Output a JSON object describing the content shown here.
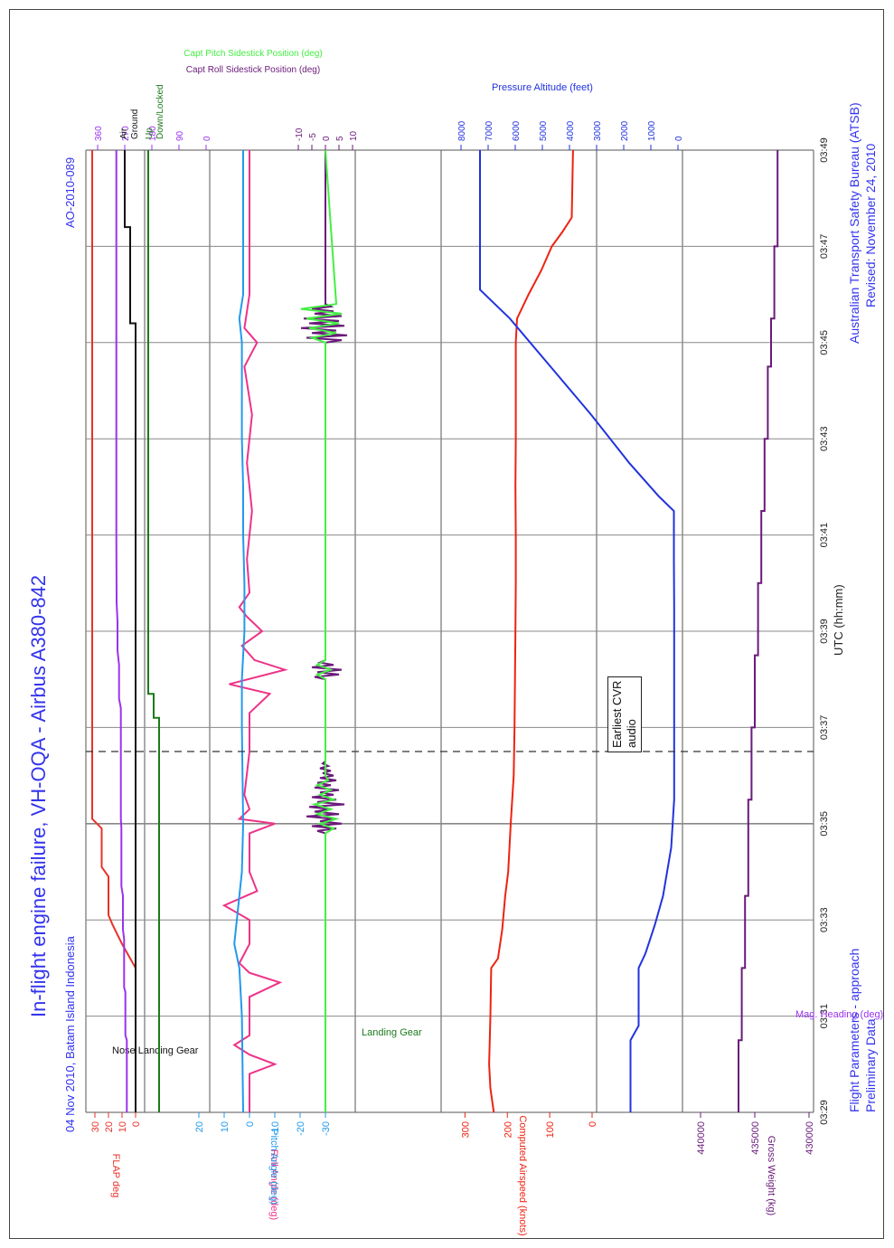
{
  "header": {
    "title": "In-flight engine failure, VH-OQA - Airbus A380-842",
    "subtitle": "04 Nov 2010, Batam Island Indonesia",
    "report_id": "AO-2010-089"
  },
  "footer": {
    "left_line1": "Flight Parameters - approach",
    "left_line2": "Preliminary Data",
    "right_line1": "Australian Transport Safety Bureau (ATSB)",
    "right_line2": "Revised: November 24, 2010",
    "xlabel": "UTC (hh:mm)"
  },
  "colors": {
    "title_blue": "#3333ee",
    "flap": "#e8322a",
    "nose_gear": "#111111",
    "landing_gear": "#1b7a1b",
    "heading": "#9933ee",
    "roll": "#ee3388",
    "pitch": "#2299ee",
    "roll_stick": "#6a1a7a",
    "pitch_stick": "#44ee44",
    "airspeed": "#ee2211",
    "altitude": "#2233dd",
    "weight": "#6a1a7a"
  },
  "chart_data": {
    "type": "line",
    "title": "In-flight engine failure, VH-OQA - Airbus A380-842",
    "xlabel": "UTC (hh:mm)",
    "x_ticks": [
      "03:29",
      "03:31",
      "03:33",
      "03:35",
      "03:37",
      "03:39",
      "03:41",
      "03:43",
      "03:45",
      "03:47",
      "03:49"
    ],
    "x_range_min": [
      0,
      20
    ],
    "grid": true,
    "annotations": {
      "cvr_box_line1": "Earliest CVR",
      "cvr_box_line2": "audio",
      "cvr_time_min": 6.0,
      "dashed_time_min": 7.5
    },
    "axes": {
      "flap": {
        "label": "FLAP deg",
        "ticks": [
          "30",
          "20",
          "10",
          "0"
        ]
      },
      "gear": {
        "labels": [
          "Air",
          "Ground",
          "Up",
          "Down/Locked"
        ]
      },
      "heading": {
        "label": "Mag. Heading (deg)",
        "ticks": [
          "360",
          "270",
          "180",
          "90",
          "0"
        ]
      },
      "roll_pitch": {
        "label_roll": "Roll Angle (deg)",
        "label_pitch": "Pitch Angle (deg)",
        "ticks": [
          "20",
          "10",
          "0",
          "-10",
          "-20",
          "-30"
        ]
      },
      "sidestick": {
        "label_roll": "Capt Roll Sidestick Position (deg)",
        "label_pitch": "Capt Pitch Sidestick Position (deg)",
        "ticks": [
          "-10",
          "-5",
          "0",
          "5",
          "10"
        ]
      },
      "airspeed": {
        "label": "Computed Airspeed (knots)",
        "ticks": [
          "300",
          "200",
          "100",
          "0"
        ]
      },
      "altitude": {
        "label": "Pressure Altitude (feet)",
        "ticks": [
          "8000",
          "7000",
          "6000",
          "5000",
          "4000",
          "3000",
          "2000",
          "1000",
          "0"
        ]
      },
      "weight": {
        "label": "Gross Weight (kg)",
        "ticks": [
          "440000",
          "435000",
          "430000"
        ]
      }
    },
    "series": [
      {
        "name": "FLAP deg",
        "x": [
          0,
          3.0,
          3.5,
          3.9,
          4.1,
          4.9,
          5.1,
          5.9,
          6.1,
          20
        ],
        "y": [
          0,
          0,
          10,
          17,
          20,
          20,
          25,
          25,
          32,
          32
        ]
      },
      {
        "name": "Nose Landing Gear",
        "x": [
          0,
          16.4,
          16.4,
          18.4,
          18.4,
          20
        ],
        "y": [
          0,
          0,
          0.5,
          0.5,
          1,
          1
        ]
      },
      {
        "name": "Landing Gear",
        "x": [
          0,
          8.2,
          8.2,
          8.7,
          8.7,
          20
        ],
        "y": [
          0,
          0,
          0.5,
          0.5,
          1,
          1
        ]
      },
      {
        "name": "Mag. Heading (deg)",
        "x": [
          0,
          1.5,
          1.6,
          2.5,
          2.6,
          3.6,
          3.8,
          4.5,
          4.7,
          5.9,
          6.1,
          8.4,
          8.6,
          9.3,
          9.6,
          10.2,
          10.6,
          12,
          20
        ],
        "y": [
          263,
          263,
          268,
          268,
          272,
          272,
          276,
          276,
          281,
          281,
          283,
          283,
          289,
          289,
          294,
          294,
          297,
          298,
          298
        ]
      },
      {
        "name": "Roll Angle (deg)",
        "x": [
          0,
          0.8,
          1.0,
          1.2,
          1.4,
          1.6,
          2.4,
          2.7,
          2.9,
          3.1,
          3.5,
          4.0,
          4.3,
          4.6,
          5.0,
          5.8,
          6.0,
          6.1,
          6.3,
          6.6,
          7.5,
          8.3,
          8.7,
          8.9,
          9.2,
          9.4,
          9.7,
          10.0,
          10.3,
          10.5,
          10.8,
          11.5,
          12.5,
          13.5,
          14.5,
          15.5,
          16.0,
          16.3,
          17,
          20
        ],
        "y": [
          0,
          0,
          -10,
          0,
          6,
          0,
          0,
          -12,
          0,
          4,
          0,
          0,
          10,
          -3,
          0,
          0,
          -10,
          4,
          0,
          2,
          0,
          0,
          -8,
          8,
          -14,
          -2,
          3,
          -5,
          1,
          4,
          0,
          1,
          -1,
          1,
          -1,
          2,
          -3,
          2,
          0,
          0
        ]
      },
      {
        "name": "Pitch Angle (deg)",
        "x": [
          0,
          2,
          3,
          3.5,
          4,
          5,
          6,
          8,
          9,
          10,
          11,
          12,
          13,
          14,
          15,
          16,
          16.5,
          17,
          20
        ],
        "y": [
          2.5,
          3,
          4,
          6,
          5,
          3,
          2.5,
          3,
          3,
          2,
          2,
          2.5,
          2.5,
          3,
          3,
          3,
          4,
          2.5,
          2.5
        ]
      },
      {
        "name": "Capt Roll Sidestick Position (deg)",
        "x": [
          0,
          5.8,
          5.85,
          5.9,
          5.95,
          6.0,
          6.05,
          6.1,
          6.15,
          6.2,
          6.25,
          6.3,
          6.35,
          6.4,
          6.45,
          6.5,
          6.55,
          6.6,
          6.65,
          6.7,
          6.75,
          6.8,
          6.85,
          6.9,
          6.95,
          7.0,
          7.05,
          7.1,
          7.15,
          7.2,
          7.25,
          7.3,
          9.0,
          9.05,
          9.1,
          9.15,
          9.2,
          9.25,
          9.3,
          9.35,
          9.4,
          16.0,
          16.05,
          16.1,
          16.15,
          16.2,
          16.25,
          16.3,
          16.35,
          16.4,
          16.45,
          16.5,
          16.55,
          16.6,
          16.65,
          16.7,
          16.75,
          16.8,
          20
        ],
        "y": [
          0,
          0,
          3,
          -4,
          5,
          -6,
          2,
          -3,
          7,
          -5,
          4,
          -2,
          6,
          -7,
          3,
          -4,
          5,
          -3,
          2,
          -5,
          4,
          -2,
          3,
          -4,
          2,
          -3,
          1,
          -2,
          2,
          -1,
          1,
          0,
          0,
          4,
          -5,
          3,
          -6,
          5,
          -3,
          2,
          0,
          0,
          -6,
          7,
          -8,
          5,
          -4,
          9,
          -7,
          6,
          -5,
          8,
          -6,
          4,
          -3,
          5,
          -2,
          0,
          0
        ]
      },
      {
        "name": "Capt Pitch Sidestick Position (deg)",
        "x": [
          0,
          5.8,
          5.9,
          6.0,
          6.1,
          6.2,
          6.3,
          6.4,
          6.5,
          6.6,
          6.7,
          6.8,
          6.9,
          7.0,
          9.0,
          9.1,
          9.2,
          9.3,
          9.4,
          16.0,
          16.1,
          16.2,
          16.3,
          16.4,
          16.5,
          16.6,
          16.7,
          16.8,
          20
        ],
        "y": [
          0,
          0,
          -3,
          2,
          -4,
          3,
          -2,
          4,
          -3,
          2,
          -2,
          3,
          -1,
          0,
          0,
          3,
          -2,
          3,
          0,
          0,
          5,
          -4,
          6,
          -5,
          7,
          -6,
          9,
          -4,
          0
        ]
      },
      {
        "name": "Computed Airspeed (knots)",
        "x": [
          0,
          0.5,
          1,
          2,
          3,
          3.2,
          3.8,
          4.5,
          5,
          6,
          7,
          8,
          9,
          10,
          11,
          12,
          13,
          14,
          15,
          16,
          16.5,
          17,
          17.5,
          18,
          18.3,
          18.6,
          20
        ],
        "y": [
          232,
          240,
          243,
          240,
          238,
          222,
          212,
          205,
          198,
          192,
          185,
          183,
          182,
          181,
          180,
          180,
          181,
          180,
          180,
          180,
          177,
          150,
          120,
          95,
          70,
          48,
          45
        ]
      },
      {
        "name": "Pressure Altitude (feet)",
        "x": [
          0,
          1.5,
          1.8,
          3.0,
          3.3,
          3.9,
          4.5,
          5.5,
          6.5,
          7.5,
          8.5,
          9.5,
          10.5,
          11.5,
          12.5,
          12.8,
          13.5,
          14.5,
          15.5,
          16.5,
          17.1,
          20
        ],
        "y": [
          1750,
          1750,
          1450,
          1450,
          1200,
          850,
          550,
          250,
          140,
          140,
          140,
          140,
          140,
          150,
          150,
          700,
          1800,
          3200,
          4700,
          6200,
          7300,
          7300
        ]
      },
      {
        "name": "Gross Weight (kg)",
        "x": [
          0,
          1.5,
          1.5,
          3.0,
          3.0,
          4.5,
          4.5,
          6.5,
          6.5,
          8.0,
          8.0,
          9.5,
          9.5,
          11.0,
          11.0,
          12.5,
          12.5,
          14.0,
          14.0,
          15.5,
          15.5,
          16.5,
          16.5,
          18.0,
          18.0,
          20
        ],
        "y": [
          436500,
          436500,
          436200,
          436200,
          435900,
          435900,
          435600,
          435600,
          435300,
          435300,
          435000,
          435000,
          434700,
          434700,
          434400,
          434400,
          434100,
          434100,
          433800,
          433800,
          433500,
          433500,
          433200,
          433200,
          432900,
          432900
        ]
      }
    ]
  }
}
